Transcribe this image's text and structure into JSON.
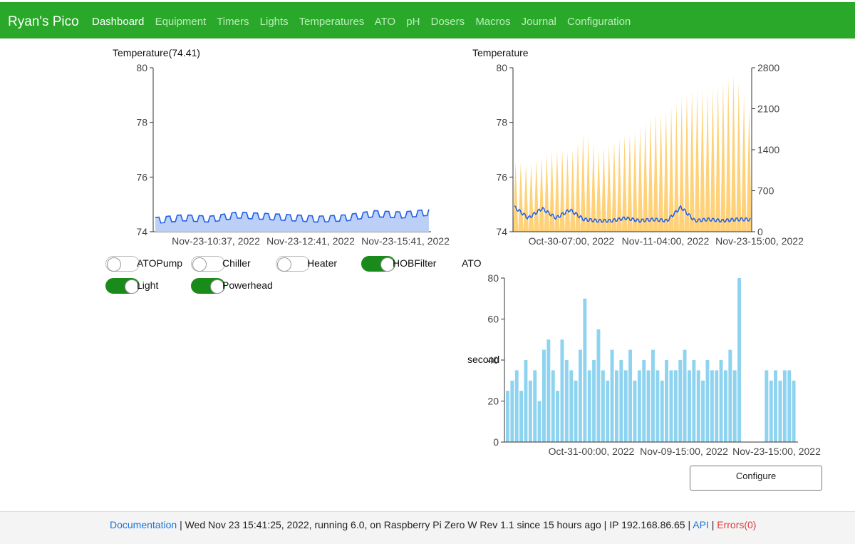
{
  "header": {
    "brand": "Ryan's Pico",
    "nav": [
      "Dashboard",
      "Equipment",
      "Timers",
      "Lights",
      "Temperatures",
      "ATO",
      "pH",
      "Dosers",
      "Macros",
      "Journal",
      "Configuration"
    ],
    "active": "Dashboard"
  },
  "colors": {
    "header_bg": "#2aa82a",
    "line": "#1f5fe8",
    "usage": "#ffd27a",
    "ato": "#8ed3ef",
    "switch_on": "#1a8a1a",
    "link": "#1a73d9",
    "error": "#e03a3a"
  },
  "toggles": [
    {
      "label": "ATOPump",
      "on": false
    },
    {
      "label": "Chiller",
      "on": false
    },
    {
      "label": "Heater",
      "on": false
    },
    {
      "label": "HOBFilter",
      "on": true
    },
    {
      "label": "Light",
      "on": true
    },
    {
      "label": "Powerhead",
      "on": true
    }
  ],
  "chart_data": [
    {
      "type": "area",
      "title": "Temperature(74.41)",
      "ylim": [
        74,
        80
      ],
      "yticks": [
        "74",
        "76",
        "78",
        "80"
      ],
      "xticks": [
        "Nov-23-10:37, 2022",
        "Nov-23-12:41, 2022",
        "Nov-23-15:41, 2022"
      ],
      "x": [
        "Nov-23-10:37, 2022",
        "Nov-23-11:10, 2022",
        "Nov-23-11:40, 2022",
        "Nov-23-12:10, 2022",
        "Nov-23-12:41, 2022",
        "Nov-23-13:10, 2022",
        "Nov-23-13:40, 2022",
        "Nov-23-14:10, 2022",
        "Nov-23-14:40, 2022",
        "Nov-23-15:10, 2022",
        "Nov-23-15:41, 2022"
      ],
      "values": [
        74.4,
        74.5,
        74.45,
        74.6,
        74.55,
        74.5,
        74.45,
        74.5,
        74.65,
        74.6,
        74.7
      ]
    },
    {
      "type": "area",
      "title": "Temperature",
      "ylim": [
        74,
        80
      ],
      "yticks": [
        "74",
        "76",
        "78",
        "80"
      ],
      "y2lim": [
        0,
        2800
      ],
      "y2ticks": [
        "0",
        "700",
        "1400",
        "2100",
        "2800"
      ],
      "xticks": [
        "Oct-30-07:00, 2022",
        "Nov-11-04:00, 2022",
        "Nov-23-15:00, 2022"
      ],
      "series": [
        {
          "axis": "y",
          "values": [
            74.9,
            74.5,
            74.85,
            74.5,
            74.8,
            74.45,
            74.4,
            74.4,
            74.5,
            74.4,
            74.45,
            74.4,
            74.9,
            74.4,
            74.45,
            74.4,
            74.45,
            74.45
          ]
        },
        {
          "axis": "y2",
          "values": [
            1200,
            1150,
            1300,
            1400,
            1350,
            1700,
            1400,
            1500,
            1650,
            1750,
            2000,
            2050,
            2250,
            2450,
            2400,
            2550,
            2700,
            2100
          ]
        }
      ]
    },
    {
      "type": "bar",
      "title": "ATO",
      "ylabel": "second",
      "ylim": [
        0,
        80
      ],
      "yticks": [
        "0",
        "20",
        "40",
        "60",
        "80"
      ],
      "xticks": [
        "Oct-31-00:00, 2022",
        "Nov-09-15:00, 2022",
        "Nov-23-15:00, 2022"
      ],
      "values": [
        25,
        30,
        35,
        25,
        40,
        30,
        35,
        20,
        45,
        50,
        35,
        25,
        50,
        40,
        35,
        30,
        45,
        70,
        35,
        40,
        55,
        35,
        30,
        45,
        35,
        40,
        35,
        45,
        30,
        35,
        40,
        35,
        45,
        35,
        30,
        40,
        35,
        35,
        40,
        45,
        35,
        40,
        35,
        30,
        40,
        35,
        35,
        40,
        35,
        45,
        35,
        80,
        0,
        0,
        0,
        0,
        0,
        35,
        30,
        35,
        30,
        35,
        35,
        30
      ]
    }
  ],
  "configure_label": "Configure",
  "footer": {
    "doc": "Documentation",
    "sep": "|",
    "status": "Wed Nov 23 15:41:25, 2022,  running 6.0, on Raspberry Pi Zero W Rev 1.1  since 15 hours ago  |  IP 192.168.86.65 |",
    "api": "API",
    "errors": "Errors(0)"
  }
}
